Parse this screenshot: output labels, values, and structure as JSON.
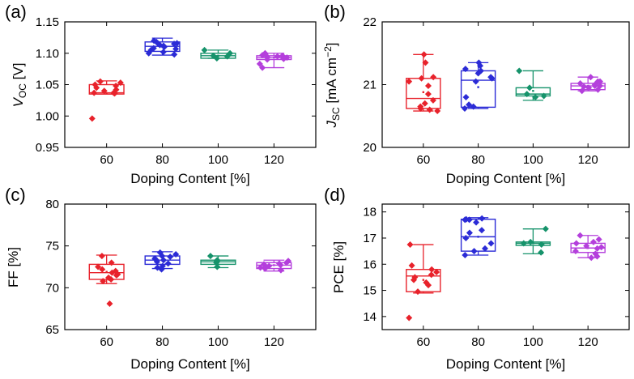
{
  "chart_data": [
    {
      "panel": "(a)",
      "type": "box",
      "xlabel": "Doping Content [%]",
      "ylabel": {
        "main": "V",
        "sub": "OC",
        "rest": " [V]"
      },
      "categories": [
        "60",
        "80",
        "100",
        "120"
      ],
      "ylim": [
        0.95,
        1.15
      ],
      "yticks": [
        "0.95",
        "1.00",
        "1.05",
        "1.10",
        "1.15"
      ],
      "box_stats": [
        {
          "q1": 1.035,
          "median": 1.037,
          "q3": 1.05,
          "wlow": 1.035,
          "whigh": 1.056,
          "mean": 1.036
        },
        {
          "q1": 1.103,
          "median": 1.111,
          "q3": 1.118,
          "wlow": 1.097,
          "whigh": 1.124,
          "mean": 1.11
        },
        {
          "q1": 1.092,
          "median": 1.096,
          "q3": 1.1,
          "wlow": 1.092,
          "whigh": 1.105,
          "mean": 1.096
        },
        {
          "q1": 1.09,
          "median": 1.093,
          "q3": 1.096,
          "wlow": 1.077,
          "whigh": 1.1,
          "mean": 1.093
        }
      ],
      "points": [
        [
          1.037,
          1.037,
          1.04,
          1.042,
          1.045,
          1.048,
          1.05,
          1.053,
          1.055,
          1.036,
          0.996
        ],
        [
          1.11,
          1.115,
          1.118,
          1.112,
          1.105,
          1.1,
          1.098,
          1.108,
          1.113,
          1.116,
          1.12,
          1.102,
          1.107,
          1.115
        ],
        [
          1.092,
          1.096,
          1.1,
          1.105,
          1.095
        ],
        [
          1.09,
          1.093,
          1.095,
          1.097,
          1.1,
          1.092,
          1.096,
          1.083,
          1.077,
          1.094,
          1.091,
          1.098
        ]
      ]
    },
    {
      "panel": "(b)",
      "type": "box",
      "xlabel": "Doping Content [%]",
      "ylabel": {
        "main": "J",
        "sub": "SC",
        "rest": " [mA cm",
        "sup": "−2",
        "end": "]"
      },
      "categories": [
        "60",
        "80",
        "100",
        "120"
      ],
      "ylim": [
        20,
        22
      ],
      "yticks": [
        "20",
        "21",
        "22"
      ],
      "box_stats": [
        {
          "q1": 20.62,
          "median": 20.78,
          "q3": 21.1,
          "wlow": 20.58,
          "whigh": 21.48,
          "mean": 20.88
        },
        {
          "q1": 20.64,
          "median": 21.07,
          "q3": 21.22,
          "wlow": 20.62,
          "whigh": 21.35,
          "mean": 20.96
        },
        {
          "q1": 20.82,
          "median": 20.85,
          "q3": 20.95,
          "wlow": 20.75,
          "whigh": 21.22,
          "mean": 20.9
        },
        {
          "q1": 20.92,
          "median": 20.98,
          "q3": 21.02,
          "wlow": 20.9,
          "whigh": 21.12,
          "mean": 20.98
        }
      ],
      "points": [
        [
          21.48,
          21.35,
          21.12,
          21.05,
          20.98,
          20.85,
          20.75,
          20.7,
          20.65,
          20.6,
          20.58,
          20.62,
          21.1
        ],
        [
          21.35,
          21.3,
          21.25,
          21.18,
          21.1,
          21.05,
          21.12,
          20.8,
          20.65,
          20.62,
          21.22,
          20.68
        ],
        [
          21.22,
          20.95,
          20.85,
          20.8,
          20.82
        ],
        [
          21.12,
          21.05,
          21.0,
          20.98,
          20.95,
          20.92,
          20.98,
          21.02,
          20.9,
          21.05,
          20.97
        ]
      ]
    },
    {
      "panel": "(c)",
      "type": "box",
      "xlabel": "Doping Content [%]",
      "ylabel": {
        "main": "FF [%]"
      },
      "categories": [
        "60",
        "80",
        "100",
        "120"
      ],
      "ylim": [
        65,
        80
      ],
      "yticks": [
        "65",
        "70",
        "75",
        "80"
      ],
      "box_stats": [
        {
          "q1": 71.0,
          "median": 71.8,
          "q3": 72.8,
          "wlow": 70.5,
          "whigh": 73.9,
          "mean": 71.9
        },
        {
          "q1": 72.8,
          "median": 73.3,
          "q3": 73.8,
          "wlow": 72.3,
          "whigh": 74.3,
          "mean": 73.3
        },
        {
          "q1": 72.8,
          "median": 73.1,
          "q3": 73.3,
          "wlow": 72.4,
          "whigh": 73.8,
          "mean": 73.1
        },
        {
          "q1": 72.3,
          "median": 72.7,
          "q3": 73.0,
          "wlow": 72.0,
          "whigh": 73.3,
          "mean": 72.7
        }
      ],
      "points": [
        [
          73.8,
          73.0,
          72.5,
          72.2,
          71.8,
          71.5,
          71.2,
          71.0,
          70.8,
          72.0,
          71.6,
          68.1
        ],
        [
          74.2,
          74.0,
          73.8,
          73.5,
          73.3,
          73.1,
          72.9,
          72.6,
          72.4,
          73.7,
          72.2,
          73.4
        ],
        [
          73.8,
          73.2,
          73.0,
          72.5,
          73.3
        ],
        [
          73.2,
          73.0,
          72.8,
          72.6,
          72.4,
          72.9,
          72.7,
          72.1,
          72.5,
          72.3
        ]
      ]
    },
    {
      "panel": "(d)",
      "type": "box",
      "xlabel": "Doping Content [%]",
      "ylabel": {
        "main": "PCE [%]"
      },
      "categories": [
        "60",
        "80",
        "100",
        "120"
      ],
      "ylim": [
        13.5,
        18.3
      ],
      "yticks": [
        "14",
        "15",
        "16",
        "17",
        "18"
      ],
      "box_stats": [
        {
          "q1": 14.95,
          "median": 15.55,
          "q3": 15.8,
          "wlow": 14.9,
          "whigh": 16.75,
          "mean": 15.4
        },
        {
          "q1": 16.5,
          "median": 17.05,
          "q3": 17.72,
          "wlow": 16.35,
          "whigh": 17.78,
          "mean": 17.05
        },
        {
          "q1": 16.72,
          "median": 16.8,
          "q3": 16.85,
          "wlow": 16.4,
          "whigh": 17.35,
          "mean": 16.8
        },
        {
          "q1": 16.45,
          "median": 16.62,
          "q3": 16.8,
          "wlow": 16.25,
          "whigh": 17.1,
          "mean": 16.62
        }
      ],
      "points": [
        [
          16.75,
          15.95,
          15.8,
          15.7,
          15.6,
          15.5,
          15.4,
          15.3,
          15.2,
          14.95,
          13.95
        ],
        [
          17.75,
          17.72,
          17.7,
          17.6,
          17.3,
          17.2,
          17.0,
          16.8,
          16.6,
          16.5,
          16.35,
          17.7
        ],
        [
          17.35,
          16.85,
          16.8,
          16.75,
          16.45
        ],
        [
          17.1,
          16.95,
          16.8,
          16.7,
          16.6,
          16.5,
          16.4,
          16.3,
          16.25,
          16.85,
          16.65
        ]
      ]
    }
  ],
  "series_colors": [
    "#e8222b",
    "#2b2bd6",
    "#16936b",
    "#b43fdc"
  ]
}
